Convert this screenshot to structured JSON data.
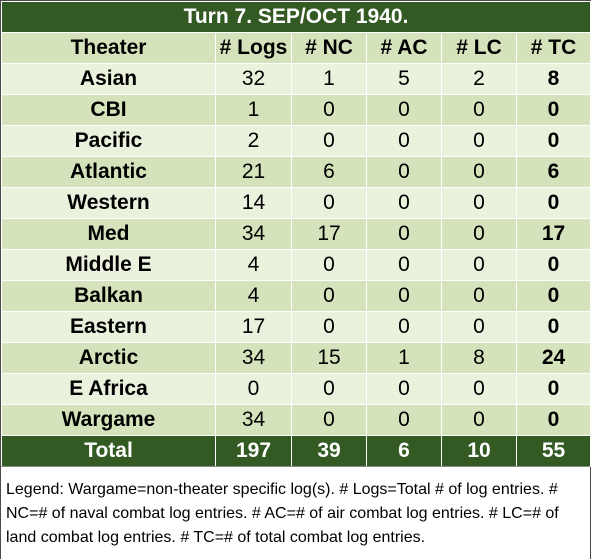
{
  "title": "Turn 7.  SEP/OCT 1940.",
  "headers": [
    "Theater",
    "# Logs",
    "# NC",
    "# AC",
    "# LC",
    "# TC"
  ],
  "rows": [
    [
      "Asian",
      "32",
      "1",
      "5",
      "2",
      "8"
    ],
    [
      "CBI",
      "1",
      "0",
      "0",
      "0",
      "0"
    ],
    [
      "Pacific",
      "2",
      "0",
      "0",
      "0",
      "0"
    ],
    [
      "Atlantic",
      "21",
      "6",
      "0",
      "0",
      "6"
    ],
    [
      "Western",
      "14",
      "0",
      "0",
      "0",
      "0"
    ],
    [
      "Med",
      "34",
      "17",
      "0",
      "0",
      "17"
    ],
    [
      "Middle E",
      "4",
      "0",
      "0",
      "0",
      "0"
    ],
    [
      "Balkan",
      "4",
      "0",
      "0",
      "0",
      "0"
    ],
    [
      "Eastern",
      "17",
      "0",
      "0",
      "0",
      "0"
    ],
    [
      "Arctic",
      "34",
      "15",
      "1",
      "8",
      "24"
    ],
    [
      "E Africa",
      "0",
      "0",
      "0",
      "0",
      "0"
    ],
    [
      "Wargame",
      "34",
      "0",
      "0",
      "0",
      "0"
    ]
  ],
  "total": [
    "Total",
    "197",
    "39",
    "6",
    "10",
    "55"
  ],
  "legend": "Legend:  Wargame=non-theater specific log(s).  # Logs=Total # of log entries.  # NC=# of naval combat log entries.  # AC=# of air combat log entries.  # LC=# of land combat log entries.  # TC=# of total combat log entries.",
  "colors": {
    "dark_green": "#345a24",
    "light_green": "#eaf1dd",
    "mid_green": "#d5e3bc"
  }
}
